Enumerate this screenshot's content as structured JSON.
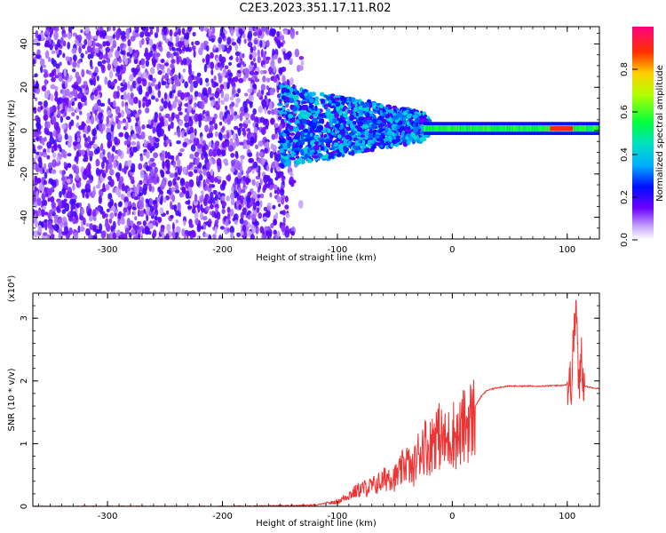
{
  "title": "C2E3.2023.351.17.11.R02",
  "chart_data": [
    {
      "type": "heatmap",
      "xlabel": "Height of straight line (km)",
      "ylabel": "Frequency (Hz)",
      "xlim": [
        -365,
        128
      ],
      "ylim": [
        -50,
        48
      ],
      "xticks": [
        -300,
        -200,
        -100,
        0,
        100
      ],
      "xtick_labels": [
        "-300",
        "-200",
        "-100",
        "0",
        "100"
      ],
      "yticks": [
        -40,
        -20,
        0,
        20,
        40
      ],
      "ytick_labels": [
        "-40",
        "-20",
        "0",
        "20",
        "40"
      ],
      "colorbar": {
        "label": "Normalized spectral amplitude",
        "ticks": [
          0.0,
          0.2,
          0.4,
          0.6,
          0.8
        ],
        "tick_labels": [
          "0.0",
          "0.2",
          "0.4",
          "0.6",
          "0.8"
        ],
        "range": [
          0.0,
          1.0
        ]
      },
      "regions": [
        {
          "x_range": [
            -365,
            -150
          ],
          "description_values": {
            "freq_range": [
              -50,
              48
            ],
            "amplitude": 0.15
          }
        },
        {
          "x_range": [
            -150,
            -20
          ],
          "description_values": {
            "freq_range": [
              -20,
              15
            ],
            "amplitude": 0.3
          }
        },
        {
          "x_range": [
            -20,
            128
          ],
          "description_values": {
            "freq_center": 1,
            "amplitude": 0.55
          }
        },
        {
          "x_range": [
            85,
            105
          ],
          "description_values": {
            "freq_center": 1,
            "amplitude": 0.95
          }
        }
      ]
    },
    {
      "type": "line",
      "xlabel": "Height of straight line (km)",
      "ylabel": "SNR (10 * v/v)",
      "multiplier_label": "(x10⁴)",
      "xlim": [
        -365,
        128
      ],
      "ylim": [
        0,
        3.4
      ],
      "xticks": [
        -300,
        -200,
        -100,
        0,
        100
      ],
      "xtick_labels": [
        "-300",
        "-200",
        "-100",
        "0",
        "100"
      ],
      "yticks": [
        0,
        1,
        2,
        3
      ],
      "ytick_labels": [
        "0",
        "1",
        "2",
        "3"
      ],
      "series_color": "#ee3333",
      "series": [
        {
          "x": [
            -365,
            -300,
            -200,
            -150,
            -120,
            -100,
            -90,
            -80,
            -70,
            -60,
            -55,
            -50,
            -45,
            -40,
            -35,
            -30,
            -25,
            -20,
            -15,
            -10,
            -5,
            0,
            5,
            10,
            15,
            20,
            25,
            30,
            40,
            50,
            60,
            70,
            80,
            90,
            95,
            100,
            104,
            106,
            108,
            110,
            112,
            115,
            120,
            128
          ],
          "y": [
            0.0,
            0.0,
            0.0,
            0.01,
            0.02,
            0.08,
            0.2,
            0.3,
            0.35,
            0.45,
            0.55,
            0.5,
            0.6,
            0.8,
            0.6,
            0.9,
            1.1,
            1.0,
            1.3,
            1.2,
            1.1,
            1.3,
            1.2,
            1.4,
            1.5,
            1.6,
            1.75,
            1.85,
            1.9,
            1.92,
            1.92,
            1.92,
            1.92,
            1.93,
            1.93,
            1.95,
            2.1,
            2.9,
            3.3,
            1.8,
            2.6,
            1.92,
            1.9,
            1.88
          ]
        }
      ]
    }
  ]
}
